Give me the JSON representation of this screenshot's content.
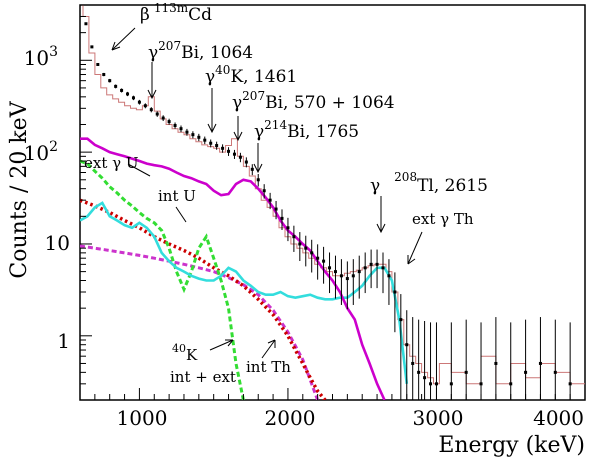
{
  "chart_data": {
    "type": "line",
    "xlabel": "Energy (keV)",
    "ylabel": "Counts / 20 keV",
    "xlim": [
      600,
      4000
    ],
    "ylim": [
      0.2,
      4000
    ],
    "y_scale": "log",
    "grid": false,
    "x_ticks": [
      {
        "value": 1000,
        "label": "1000"
      },
      {
        "value": 2000,
        "label": "2000"
      },
      {
        "value": 3000,
        "label": "3000"
      },
      {
        "value": 4000,
        "label": "4000"
      }
    ],
    "y_ticks": [
      {
        "value": 1,
        "label": "1"
      },
      {
        "value": 10,
        "label": "10"
      }
    ],
    "y_tick_powers": [
      {
        "value": 100,
        "base": "10",
        "exp": "2"
      },
      {
        "value": 1000,
        "base": "10",
        "exp": "3"
      }
    ],
    "annotations": [
      {
        "id": "cd113",
        "prefix": "β",
        "sup": "113m",
        "element": "Cd",
        "energy": ""
      },
      {
        "id": "bi1064",
        "prefix": "γ",
        "sup": "207",
        "element": "Bi",
        "energy": ", 1064"
      },
      {
        "id": "k1461",
        "prefix": "γ",
        "sup": "40",
        "element": "K",
        "energy": ", 1461"
      },
      {
        "id": "bi570",
        "prefix": "γ",
        "sup": "207",
        "element": "Bi",
        "energy": ", 570 + 1064"
      },
      {
        "id": "bi1765",
        "prefix": "γ",
        "sup": "214",
        "element": "Bi",
        "energy": ", 1765"
      },
      {
        "id": "tl2615",
        "prefix": "γ",
        "sup": "208",
        "element": "Tl",
        "energy": ", 2615"
      }
    ],
    "curve_labels": {
      "ext_u": "ext γ U",
      "int_u": "int U",
      "ext_th": "ext γ Th",
      "int_th": "int Th",
      "k40_sup": "40",
      "k40_element": "K",
      "k40_sub": "int + ext"
    },
    "colors": {
      "data": "#000000",
      "total_mc": "#cc7777",
      "ext_u": "#cc00cc",
      "ext_th": "#33dddd",
      "int_u": "#33dd33",
      "int_th": "#cc0000",
      "k40": "#cc33cc"
    },
    "series": [
      {
        "id": "data",
        "style": "points-with-errors",
        "x": [
          640,
          680,
          720,
          760,
          800,
          840,
          880,
          920,
          960,
          1000,
          1040,
          1080,
          1120,
          1160,
          1200,
          1240,
          1280,
          1320,
          1360,
          1400,
          1440,
          1480,
          1520,
          1560,
          1600,
          1640,
          1680,
          1720,
          1760,
          1800,
          1840,
          1880,
          1920,
          1960,
          2000,
          2040,
          2080,
          2120,
          2160,
          2200,
          2240,
          2280,
          2320,
          2360,
          2400,
          2440,
          2480,
          2520,
          2560,
          2600,
          2640,
          2680,
          2720,
          2760,
          2800,
          2840,
          2880,
          2920,
          2960,
          3000,
          3100,
          3200,
          3300,
          3400,
          3500,
          3600,
          3700,
          3800,
          3900
        ],
        "y": [
          2500,
          1400,
          900,
          700,
          600,
          520,
          470,
          430,
          390,
          350,
          320,
          290,
          260,
          235,
          215,
          195,
          180,
          165,
          155,
          145,
          135,
          125,
          118,
          110,
          102,
          95,
          88,
          78,
          65,
          50,
          38,
          30,
          24,
          19,
          15,
          12,
          10,
          9,
          8,
          7,
          6.5,
          5.5,
          5,
          4.5,
          4.2,
          4.5,
          5,
          5.5,
          6,
          6,
          5.5,
          4.5,
          3,
          1.5,
          0.8,
          0.5,
          0.4,
          0.35,
          0.3,
          0.3,
          0.3,
          0.4,
          0.3,
          0.5,
          0.3,
          0.4,
          0.5,
          0.4,
          0.3
        ]
      },
      {
        "id": "total_mc",
        "style": "step",
        "x": [
          600,
          620,
          660,
          700,
          740,
          780,
          820,
          860,
          900,
          940,
          980,
          1020,
          1060,
          1100,
          1140,
          1180,
          1220,
          1260,
          1300,
          1340,
          1380,
          1420,
          1460,
          1500,
          1540,
          1580,
          1620,
          1660,
          1700,
          1740,
          1780,
          1820,
          1860,
          1900,
          1940,
          1980,
          2020,
          2060,
          2100,
          2140,
          2180,
          2220,
          2260,
          2300,
          2340,
          2380,
          2420,
          2460,
          2500,
          2540,
          2580,
          2620,
          2660,
          2700,
          2740,
          2780,
          2820,
          2860,
          2900,
          2940,
          2980,
          3020,
          3100,
          3200,
          3300,
          3400,
          3500,
          3600,
          3700,
          3800,
          3900,
          4000
        ],
        "y": [
          4000,
          3000,
          1200,
          700,
          500,
          420,
          380,
          350,
          320,
          300,
          290,
          320,
          400,
          280,
          230,
          200,
          180,
          165,
          155,
          140,
          130,
          120,
          115,
          110,
          100,
          118,
          140,
          90,
          70,
          55,
          40,
          30,
          25,
          20,
          15,
          12,
          10,
          9,
          8,
          7,
          6,
          5.5,
          5,
          4.5,
          4.5,
          4.8,
          5,
          5.2,
          5.5,
          5.8,
          6,
          6,
          5,
          3,
          1.5,
          0.8,
          0.6,
          0.5,
          0.4,
          0.35,
          0.3,
          0.5,
          0.4,
          0.3,
          0.6,
          0.3,
          0.5,
          0.35,
          0.5,
          0.4,
          0.3,
          0.3
        ]
      },
      {
        "id": "ext_u",
        "style": "solid",
        "x": [
          600,
          650,
          700,
          750,
          800,
          850,
          900,
          950,
          1000,
          1050,
          1100,
          1150,
          1200,
          1250,
          1300,
          1350,
          1400,
          1450,
          1500,
          1550,
          1600,
          1650,
          1700,
          1750,
          1800,
          1850,
          1900,
          1950,
          2000,
          2050,
          2100,
          2150,
          2200,
          2250,
          2300,
          2350,
          2400,
          2450,
          2500,
          2550,
          2600,
          2650
        ],
        "y": [
          140,
          140,
          120,
          110,
          100,
          95,
          90,
          85,
          80,
          75,
          72,
          70,
          66,
          60,
          55,
          52,
          48,
          45,
          38,
          34,
          35,
          45,
          50,
          48,
          40,
          32,
          25,
          18,
          14,
          12,
          10,
          8.5,
          6.5,
          5,
          4,
          3,
          2,
          1.5,
          0.8,
          0.5,
          0.3,
          0.2
        ]
      },
      {
        "id": "ext_th",
        "style": "solid",
        "x": [
          600,
          650,
          700,
          750,
          800,
          850,
          900,
          950,
          1000,
          1050,
          1100,
          1150,
          1200,
          1250,
          1300,
          1350,
          1400,
          1450,
          1500,
          1550,
          1600,
          1650,
          1700,
          1750,
          1800,
          1850,
          1900,
          1950,
          2000,
          2050,
          2100,
          2150,
          2200,
          2250,
          2300,
          2350,
          2400,
          2450,
          2500,
          2550,
          2600,
          2650,
          2700,
          2750,
          2800
        ],
        "y": [
          18,
          20,
          25,
          28,
          20,
          18,
          16,
          15,
          17,
          15,
          12,
          8,
          6.5,
          5.5,
          5,
          4.5,
          4.2,
          4,
          4,
          4.5,
          5.5,
          5,
          4,
          3.5,
          3,
          2.8,
          2.8,
          3,
          2.7,
          2.6,
          2.7,
          2.8,
          2.6,
          2.5,
          2.5,
          2.6,
          2.6,
          3,
          3.5,
          4.5,
          5.5,
          5.5,
          4,
          1.5,
          0.3
        ]
      },
      {
        "id": "int_u",
        "style": "dashed",
        "x": [
          600,
          650,
          700,
          750,
          800,
          850,
          900,
          950,
          1000,
          1050,
          1100,
          1150,
          1200,
          1250,
          1300,
          1350,
          1400,
          1450,
          1500,
          1550,
          1600,
          1650,
          1700
        ],
        "y": [
          80,
          75,
          62,
          52,
          42,
          36,
          30,
          26,
          22,
          19,
          17,
          14,
          9,
          5,
          3.2,
          5,
          9,
          12,
          7,
          4,
          2,
          0.5,
          0.2
        ]
      },
      {
        "id": "int_th",
        "style": "dotted",
        "x": [
          600,
          700,
          800,
          900,
          1000,
          1100,
          1200,
          1300,
          1400,
          1500,
          1600,
          1700,
          1800,
          1900,
          2000,
          2050,
          2100,
          2150,
          2200,
          2250
        ],
        "y": [
          30,
          26,
          22,
          18,
          15,
          12,
          10,
          8.5,
          7,
          5.5,
          4.5,
          3.5,
          2.5,
          1.7,
          1,
          0.7,
          0.5,
          0.35,
          0.25,
          0.2
        ]
      },
      {
        "id": "k40",
        "style": "dashed",
        "x": [
          600,
          700,
          800,
          900,
          1000,
          1100,
          1200,
          1300,
          1400,
          1500,
          1600,
          1700,
          1800,
          1900,
          2000,
          2100,
          2200
        ],
        "y": [
          9.5,
          9,
          8.5,
          8,
          7.5,
          7,
          6.5,
          6,
          5.5,
          5,
          4.3,
          3.6,
          2.8,
          1.9,
          1.1,
          0.55,
          0.2
        ]
      }
    ]
  }
}
